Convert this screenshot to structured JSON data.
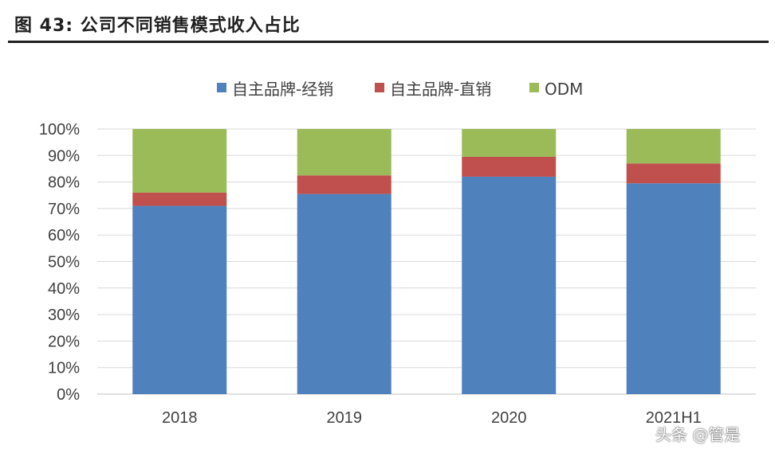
{
  "figure": {
    "title": "图 43: 公司不同销售模式收入占比",
    "watermark": "头条 @管是"
  },
  "chart_data": {
    "type": "bar",
    "stacked": true,
    "categories": [
      "2018",
      "2019",
      "2020",
      "2021H1"
    ],
    "series": [
      {
        "name": "自主品牌-经销",
        "color": "#4f81bd",
        "values": [
          71,
          75.5,
          82,
          79.5
        ]
      },
      {
        "name": "自主品牌-直销",
        "color": "#c0504d",
        "values": [
          5,
          7,
          7.5,
          7.5
        ]
      },
      {
        "name": "ODM",
        "color": "#9bbb59",
        "values": [
          24,
          17.5,
          10.5,
          13
        ]
      }
    ],
    "ylim": [
      0,
      100
    ],
    "yticks": [
      "0%",
      "10%",
      "20%",
      "30%",
      "40%",
      "50%",
      "60%",
      "70%",
      "80%",
      "90%",
      "100%"
    ],
    "grid": true,
    "legend_position": "top-center",
    "xlabel": "",
    "ylabel": ""
  }
}
